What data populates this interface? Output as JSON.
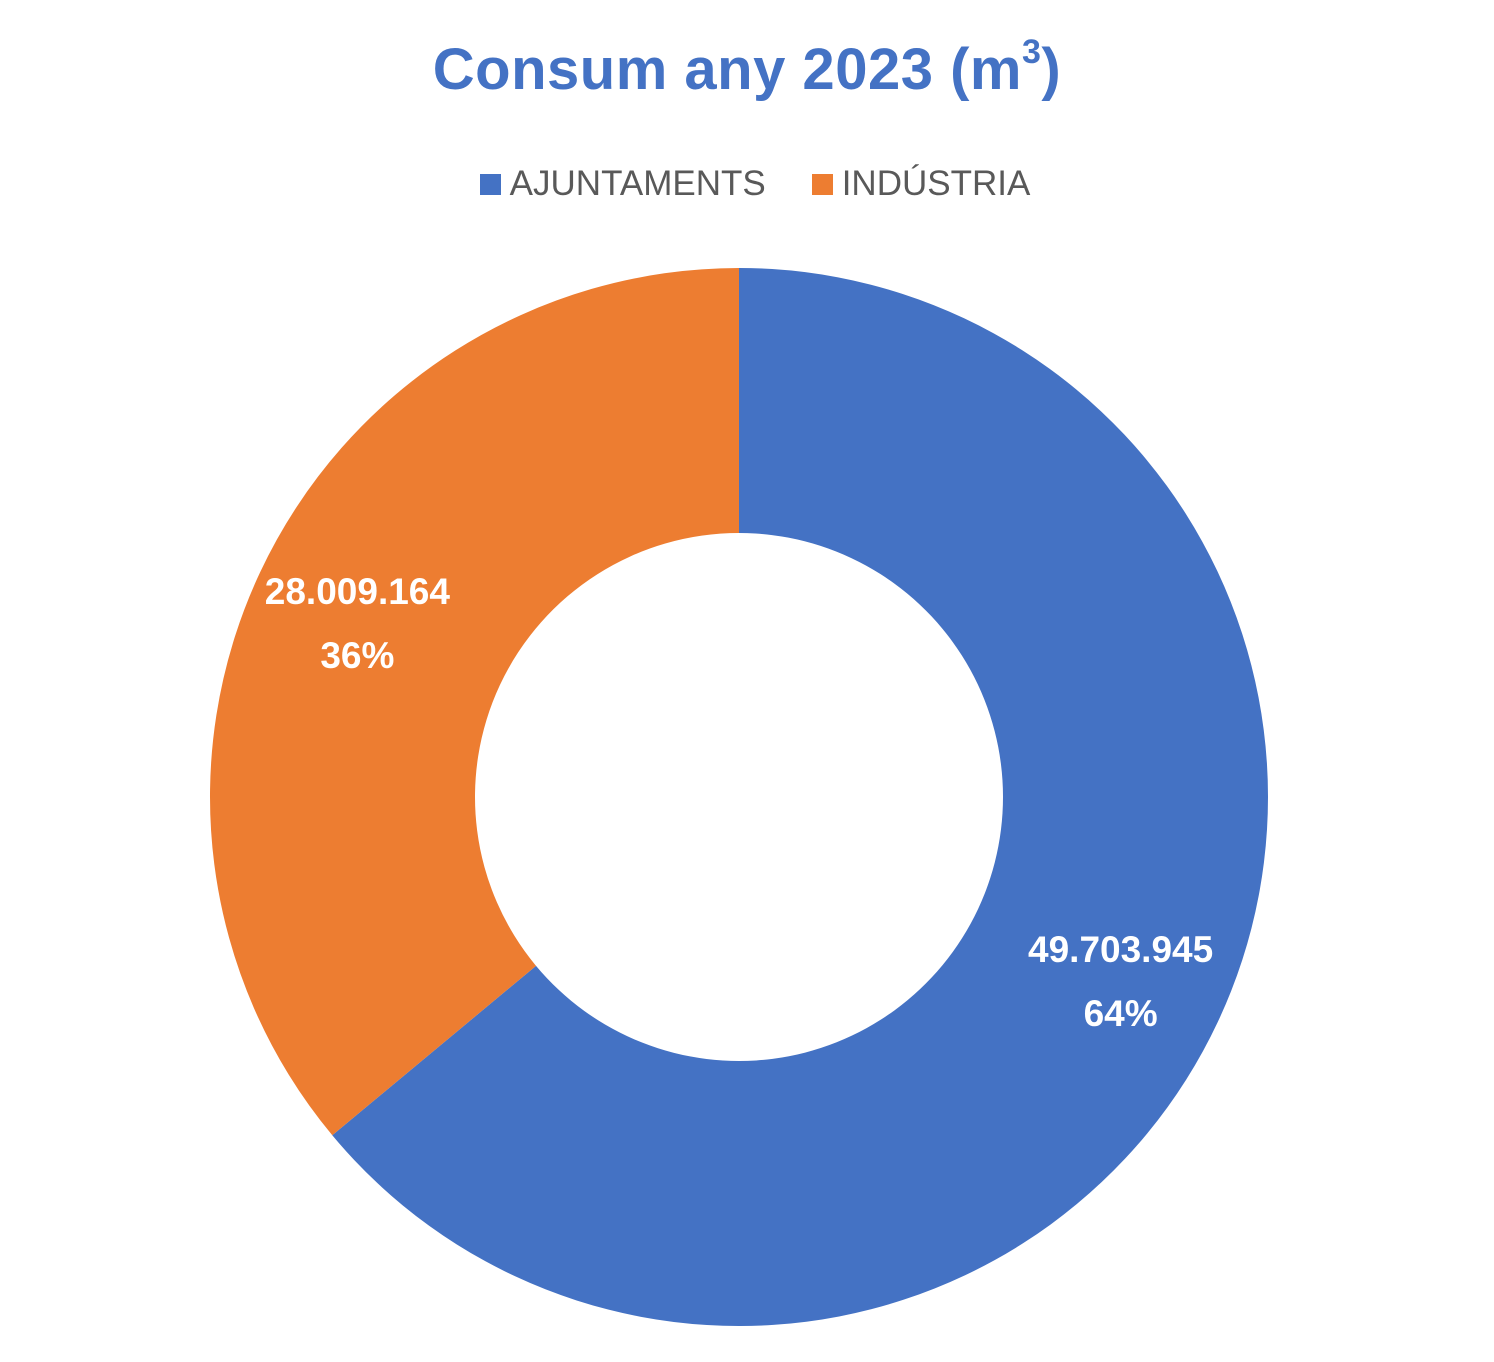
{
  "chart_data": {
    "type": "pie",
    "variant": "donut",
    "title": "Consum any 2023 (m",
    "title_superscript": "3",
    "title_suffix": ")",
    "legend_position": "top",
    "categories": [
      "AJUNTAMENTS",
      "INDÚSTRIA"
    ],
    "values": [
      49703945,
      28009164
    ],
    "value_labels": [
      "49.703.945",
      "28.009.164"
    ],
    "percent_labels": [
      "64%",
      "36%"
    ],
    "colors": [
      "#4472c4",
      "#ed7d31"
    ]
  }
}
